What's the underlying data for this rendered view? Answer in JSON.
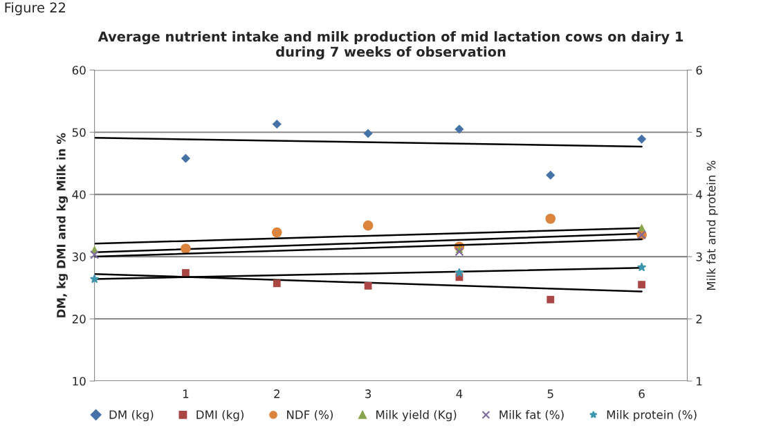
{
  "chart_data": {
    "type": "scatter",
    "title": "Average nutrient intake and milk production of mid lactation cows on dairy 1\nduring 7 weeks of observation",
    "ylabel": "DM, kg DMI and kg Milk in %",
    "y2label": "Milk fat amd protein %",
    "annotations": [
      "Figure 22"
    ],
    "xlim": [
      0,
      6.5
    ],
    "xticks": [
      1,
      2,
      3,
      4,
      5,
      6
    ],
    "ylim": [
      10,
      60
    ],
    "yticks": [
      10,
      20,
      30,
      40,
      50,
      60
    ],
    "y2lim": [
      1,
      6
    ],
    "y2ticks": [
      1,
      2,
      3,
      4,
      5,
      6
    ],
    "grid": "y",
    "legend": "bottom",
    "series": [
      {
        "name": "DM (kg)",
        "color": "#4572a7",
        "marker": "diamond",
        "x": [
          1,
          2,
          3,
          4,
          5,
          6
        ],
        "values": [
          45.8,
          51.3,
          49.8,
          50.5,
          43.1,
          48.9
        ]
      },
      {
        "name": "DMI (kg)",
        "color": "#aa4643",
        "marker": "square",
        "x": [
          1,
          2,
          3,
          4,
          5,
          6
        ],
        "values": [
          27.4,
          25.7,
          25.3,
          26.7,
          23.1,
          25.5
        ]
      },
      {
        "name": "NDF (%)",
        "color": "#db843d",
        "marker": "circle",
        "x": [
          1,
          2,
          3,
          4,
          5,
          6
        ],
        "values": [
          31.3,
          33.9,
          35.0,
          31.6,
          36.1,
          33.5
        ]
      },
      {
        "name": "Milk yield (Kg)",
        "color": "#89a54e",
        "marker": "triangle",
        "x": [
          0,
          4,
          6
        ],
        "values": [
          31.2,
          31.2,
          34.7
        ]
      },
      {
        "name": "Milk fat (%)",
        "color": "#80699b",
        "marker": "cross",
        "axis": "y2",
        "x": [
          0,
          4,
          6
        ],
        "values": [
          3.03,
          3.08,
          3.35
        ]
      },
      {
        "name": "Milk protein (%)",
        "color": "#3d96ae",
        "marker": "star",
        "axis": "y2",
        "x": [
          0,
          4,
          6
        ],
        "values": [
          2.64,
          2.74,
          2.83
        ]
      },
      {
        "type": "line",
        "color": "#000000",
        "x": [
          0,
          6
        ],
        "values": [
          49.1,
          47.7
        ]
      },
      {
        "type": "line",
        "color": "#000000",
        "x": [
          0,
          6
        ],
        "values": [
          27.2,
          24.4
        ]
      },
      {
        "type": "line",
        "color": "#000000",
        "x": [
          0,
          6
        ],
        "values": [
          32.1,
          34.6
        ]
      },
      {
        "type": "line",
        "color": "#000000",
        "x": [
          0,
          6
        ],
        "values": [
          30.7,
          33.7
        ]
      },
      {
        "type": "line",
        "color": "#000000",
        "axis": "y2",
        "x": [
          0,
          6
        ],
        "values": [
          3.0,
          3.28
        ]
      },
      {
        "type": "line",
        "color": "#000000",
        "axis": "y2",
        "x": [
          0,
          6
        ],
        "values": [
          2.64,
          2.82
        ]
      }
    ]
  }
}
